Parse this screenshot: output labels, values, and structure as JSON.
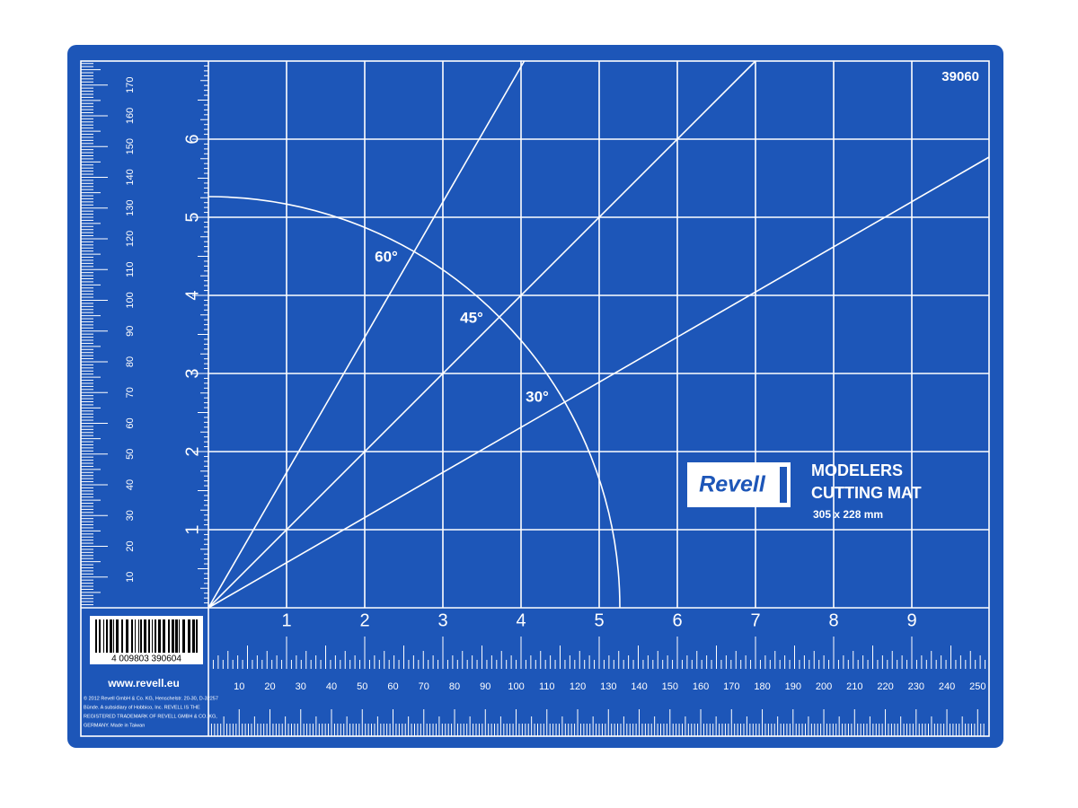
{
  "mat": {
    "code": "39060",
    "angle_labels": [
      "60°",
      "45°",
      "30°"
    ],
    "bottom_inch_labels": [
      "1",
      "2",
      "3",
      "4",
      "5",
      "6",
      "7",
      "8",
      "9"
    ],
    "left_inch_labels": [
      "1",
      "2",
      "3",
      "4",
      "5",
      "6"
    ],
    "bottom_mm_labels": [
      "10",
      "20",
      "30",
      "40",
      "50",
      "60",
      "70",
      "80",
      "90",
      "100",
      "110",
      "120",
      "130",
      "140",
      "150",
      "160",
      "170",
      "180",
      "190",
      "200",
      "210",
      "220",
      "230",
      "240",
      "250"
    ],
    "left_mm_labels": [
      "10",
      "20",
      "30",
      "40",
      "50",
      "60",
      "70",
      "80",
      "90",
      "100",
      "110",
      "120",
      "130",
      "140",
      "150",
      "160",
      "170"
    ],
    "brand": {
      "logo": "Revell",
      "line1": "MODELERS",
      "line2": "CUTTING MAT",
      "size": "305 x 228 mm"
    },
    "barcode_number": "4 009803 390604",
    "website": "www.revell.eu",
    "copyright": [
      "© 2012 Revell GmbH & Co. KG, Henschelstr. 20-30, D-32257",
      "Bünde. A subsidiary of Hobbico, Inc. REVELL IS THE",
      "REGISTERED TRADEMARK OF REVELL GMBH & CO. KG,",
      "GERMANY. Made in Taiwan"
    ]
  }
}
